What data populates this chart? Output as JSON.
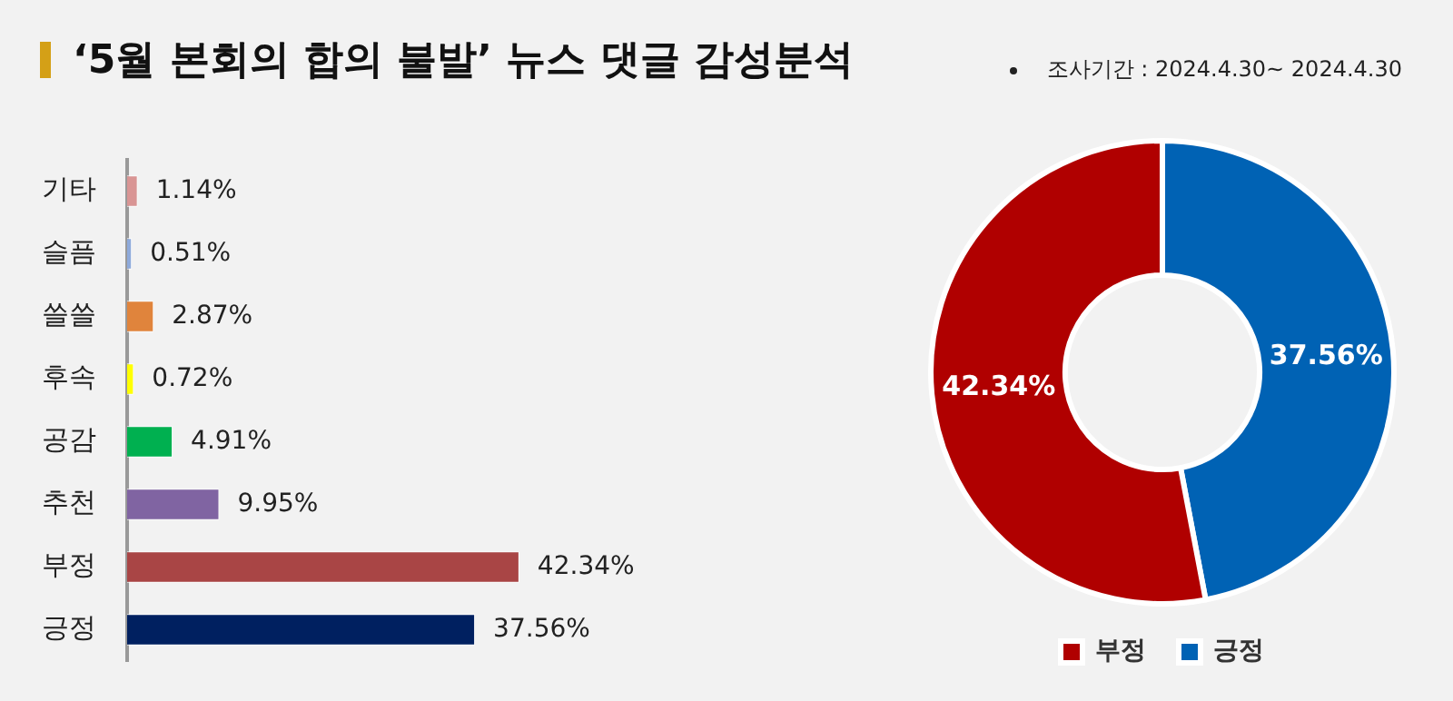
{
  "chart_data": [
    {
      "type": "bar",
      "title": "‘5월 본회의 합의 불발’ 뉴스 댓글 감성분석",
      "orientation": "horizontal",
      "categories": [
        "기타",
        "슬픔",
        "쓸쓸",
        "후속",
        "공감",
        "추천",
        "부정",
        "긍정"
      ],
      "values": [
        1.14,
        0.51,
        2.87,
        0.72,
        4.91,
        9.95,
        42.34,
        37.56
      ],
      "colors": [
        "#d99594",
        "#8eaadb",
        "#e0843c",
        "#ffff00",
        "#00b050",
        "#8064a2",
        "#a94545",
        "#002060"
      ],
      "value_labels": [
        "1.14%",
        "0.51%",
        "2.87%",
        "0.72%",
        "4.91%",
        "9.95%",
        "42.34%",
        "37.56%"
      ],
      "tick_labels": "y",
      "grid": false
    },
    {
      "type": "donut",
      "annotations": [
        "조사기간 : 2024.4.30~ 2024.4.30"
      ],
      "categories": [
        "긍정",
        "부정"
      ],
      "values": [
        37.56,
        42.34
      ],
      "colors": [
        "#0062b4",
        "#b00000"
      ],
      "value_labels": [
        "37.56%",
        "42.34%"
      ],
      "legend": "bottom"
    }
  ]
}
